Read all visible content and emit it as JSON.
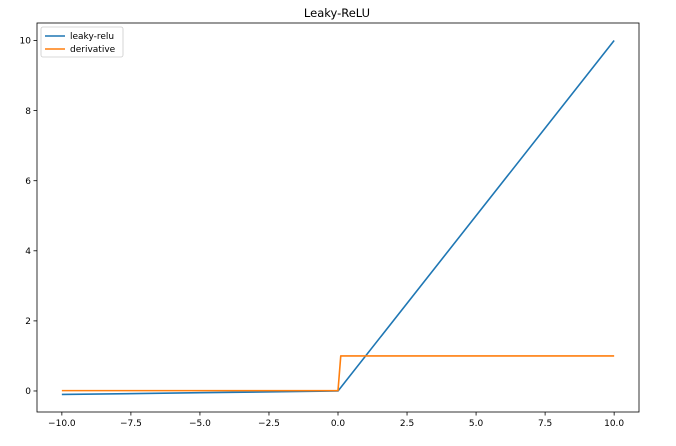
{
  "chart_data": {
    "type": "line",
    "title": "Leaky-ReLU",
    "xlabel": "",
    "ylabel": "",
    "xlim": [
      -10.9,
      10.9
    ],
    "ylim": [
      -0.6,
      10.5
    ],
    "xticks": [
      -10.0,
      -7.5,
      -5.0,
      -2.5,
      0.0,
      2.5,
      5.0,
      7.5,
      10.0
    ],
    "xtick_labels": [
      "−10.0",
      "−7.5",
      "−5.0",
      "−2.5",
      "0.0",
      "2.5",
      "5.0",
      "7.5",
      "10.0"
    ],
    "yticks": [
      0,
      2,
      4,
      6,
      8,
      10
    ],
    "ytick_labels": [
      "0",
      "2",
      "4",
      "6",
      "8",
      "10"
    ],
    "grid": false,
    "legend_position": "top-left",
    "series": [
      {
        "name": "leaky-relu",
        "color": "#1f77b4",
        "points": [
          [
            -10.0,
            -0.1
          ],
          [
            -5.0,
            -0.05
          ],
          [
            0.0,
            0.0
          ],
          [
            0.1,
            0.1
          ],
          [
            10.0,
            10.0
          ]
        ]
      },
      {
        "name": "derivative",
        "color": "#ff7f0e",
        "points": [
          [
            -10.0,
            0.01
          ],
          [
            0.0,
            0.01
          ],
          [
            0.1,
            1.0
          ],
          [
            10.0,
            1.0
          ]
        ]
      }
    ]
  }
}
